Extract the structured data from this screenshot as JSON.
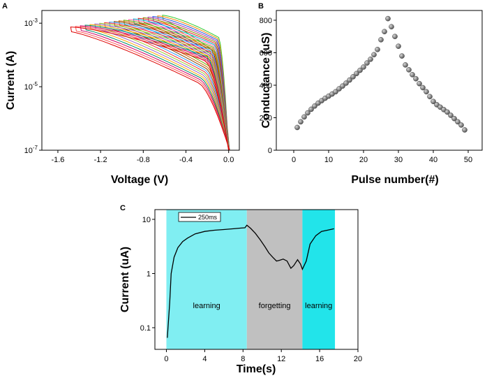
{
  "chart_data": [
    {
      "panel": "A",
      "type": "line",
      "xlabel": "Voltage (V)",
      "ylabel": "Current (A)",
      "xlim": [
        -1.75,
        0.1
      ],
      "ylim_log10": [
        -7,
        -2.6
      ],
      "xticks": [
        "-1.6",
        "-1.2",
        "-0.8",
        "-0.4",
        "0.0"
      ],
      "xtick_values": [
        -1.6,
        -1.2,
        -0.8,
        -0.4,
        0.0
      ],
      "yticks": [
        {
          "base": "10",
          "exp": "-3",
          "log": -3
        },
        {
          "base": "10",
          "exp": "-5",
          "log": -5
        },
        {
          "base": "10",
          "exp": "-7",
          "log": -7
        }
      ],
      "sweeps": {
        "count": 20,
        "vmin_first": -0.62,
        "vmin_last": -1.48,
        "imax_log_first": -2.75,
        "imax_log_last": -3.12,
        "colors": [
          "#33cc33",
          "#ff8800",
          "#2255dd",
          "#aa33aa",
          "#888800",
          "#dd2222",
          "#00aacc",
          "#ff66aa",
          "#66aa00",
          "#cc6600",
          "#884400",
          "#3399ff",
          "#ee3333",
          "#99cc33",
          "#9966cc",
          "#ffaa00",
          "#008866",
          "#cc0066",
          "#ff5555",
          "#dd0000"
        ]
      }
    },
    {
      "panel": "B",
      "type": "scatter",
      "xlabel": "Pulse number(#)",
      "ylabel": "Conductance (uS)",
      "xlim": [
        -5,
        54
      ],
      "ylim": [
        0,
        860
      ],
      "xticks": [
        "0",
        "10",
        "20",
        "30",
        "40",
        "50"
      ],
      "xtick_values": [
        0,
        10,
        20,
        30,
        40,
        50
      ],
      "yticks": [
        "0",
        "200",
        "400",
        "600",
        "800"
      ],
      "ytick_values": [
        0,
        200,
        400,
        600,
        800
      ],
      "x": [
        1,
        2,
        3,
        4,
        5,
        6,
        7,
        8,
        9,
        10,
        11,
        12,
        13,
        14,
        15,
        16,
        17,
        18,
        19,
        20,
        21,
        22,
        23,
        24,
        25,
        26,
        27,
        28,
        29,
        30,
        31,
        32,
        33,
        34,
        35,
        36,
        37,
        38,
        39,
        40,
        41,
        42,
        43,
        44,
        45,
        46,
        47,
        48,
        49
      ],
      "y": [
        140,
        175,
        205,
        230,
        252,
        272,
        290,
        305,
        320,
        333,
        346,
        360,
        378,
        395,
        413,
        432,
        452,
        472,
        492,
        512,
        537,
        560,
        588,
        620,
        680,
        730,
        810,
        760,
        700,
        640,
        580,
        525,
        495,
        465,
        440,
        410,
        385,
        360,
        330,
        300,
        280,
        265,
        250,
        235,
        215,
        195,
        175,
        155,
        125
      ]
    },
    {
      "panel": "C",
      "type": "line",
      "xlabel": "Time(s)",
      "ylabel": "Current (uA)",
      "xlim": [
        -1.2,
        20
      ],
      "ylim_log10": [
        -1.4,
        1.18
      ],
      "xticks": [
        "0",
        "4",
        "8",
        "12",
        "16",
        "20"
      ],
      "xtick_values": [
        0,
        4,
        8,
        12,
        16,
        20
      ],
      "yticks": [
        "10",
        "1",
        "0.1"
      ],
      "ytick_values": [
        1,
        0,
        -1
      ],
      "legend": "250ms",
      "regions": [
        {
          "label": "learning",
          "start": 0,
          "end": 8.4,
          "color": "#80eef2"
        },
        {
          "label": "forgetting",
          "start": 8.4,
          "end": 14.2,
          "color": "#c0c0c0"
        },
        {
          "label": "learning",
          "start": 14.2,
          "end": 17.6,
          "color": "#22e4ea"
        }
      ],
      "t": [
        0.1,
        0.35,
        0.5,
        0.8,
        1.2,
        1.7,
        2.2,
        3.0,
        4.0,
        5.0,
        6.0,
        7.0,
        7.8,
        8.2,
        8.4,
        8.8,
        9.3,
        9.8,
        10.3,
        10.7,
        11.1,
        11.5,
        11.8,
        12.2,
        12.6,
        13.0,
        13.3,
        13.7,
        14.0,
        14.2,
        14.6,
        15.0,
        15.6,
        16.2,
        16.8,
        17.5
      ],
      "i": [
        0.065,
        0.3,
        1.0,
        2.0,
        3.0,
        3.9,
        4.5,
        5.4,
        6.0,
        6.3,
        6.5,
        6.7,
        6.9,
        7.0,
        7.8,
        6.8,
        5.5,
        4.2,
        3.1,
        2.4,
        2.0,
        1.7,
        1.75,
        1.85,
        1.7,
        1.25,
        1.4,
        1.8,
        1.5,
        1.2,
        1.7,
        3.5,
        5.0,
        6.0,
        6.3,
        6.7
      ]
    }
  ]
}
